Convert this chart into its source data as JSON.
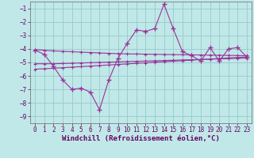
{
  "xlabel": "Windchill (Refroidissement éolien,°C)",
  "ylabel": "",
  "bg_color": "#c0e8e8",
  "grid_color": "#98c8c8",
  "line_color": "#993399",
  "x": [
    0,
    1,
    2,
    3,
    4,
    5,
    6,
    7,
    8,
    9,
    10,
    11,
    12,
    13,
    14,
    15,
    16,
    17,
    18,
    19,
    20,
    21,
    22,
    23
  ],
  "y_main": [
    -4.1,
    -4.4,
    -5.3,
    -6.3,
    -7.0,
    -6.9,
    -7.2,
    -8.5,
    -6.3,
    -4.7,
    -3.6,
    -2.6,
    -2.7,
    -2.5,
    -0.7,
    -2.5,
    -4.2,
    -4.5,
    -4.9,
    -3.9,
    -4.9,
    -4.0,
    -3.9,
    -4.6
  ],
  "y_reg1": [
    -4.05,
    -4.1,
    -4.15,
    -4.18,
    -4.21,
    -4.24,
    -4.27,
    -4.3,
    -4.33,
    -4.35,
    -4.37,
    -4.38,
    -4.39,
    -4.4,
    -4.41,
    -4.42,
    -4.43,
    -4.44,
    -4.45,
    -4.46,
    -4.47,
    -4.48,
    -4.49,
    -4.5
  ],
  "y_reg2": [
    -5.1,
    -5.1,
    -5.1,
    -5.08,
    -5.06,
    -5.04,
    -5.02,
    -5.0,
    -4.98,
    -4.96,
    -4.94,
    -4.92,
    -4.9,
    -4.88,
    -4.86,
    -4.84,
    -4.82,
    -4.8,
    -4.78,
    -4.76,
    -4.74,
    -4.72,
    -4.7,
    -4.68
  ],
  "y_reg3": [
    -5.5,
    -5.47,
    -5.43,
    -5.39,
    -5.35,
    -5.31,
    -5.27,
    -5.23,
    -5.19,
    -5.15,
    -5.11,
    -5.07,
    -5.03,
    -4.99,
    -4.95,
    -4.91,
    -4.87,
    -4.83,
    -4.79,
    -4.75,
    -4.71,
    -4.67,
    -4.63,
    -4.59
  ],
  "ylim": [
    -9.5,
    -0.5
  ],
  "xlim": [
    -0.5,
    23.5
  ],
  "yticks": [
    -9,
    -8,
    -7,
    -6,
    -5,
    -4,
    -3,
    -2,
    -1
  ],
  "xticks": [
    0,
    1,
    2,
    3,
    4,
    5,
    6,
    7,
    8,
    9,
    10,
    11,
    12,
    13,
    14,
    15,
    16,
    17,
    18,
    19,
    20,
    21,
    22,
    23
  ],
  "marker": "+",
  "markersize": 4,
  "linewidth": 0.8,
  "tick_fontsize": 5.5,
  "xlabel_fontsize": 6.5
}
